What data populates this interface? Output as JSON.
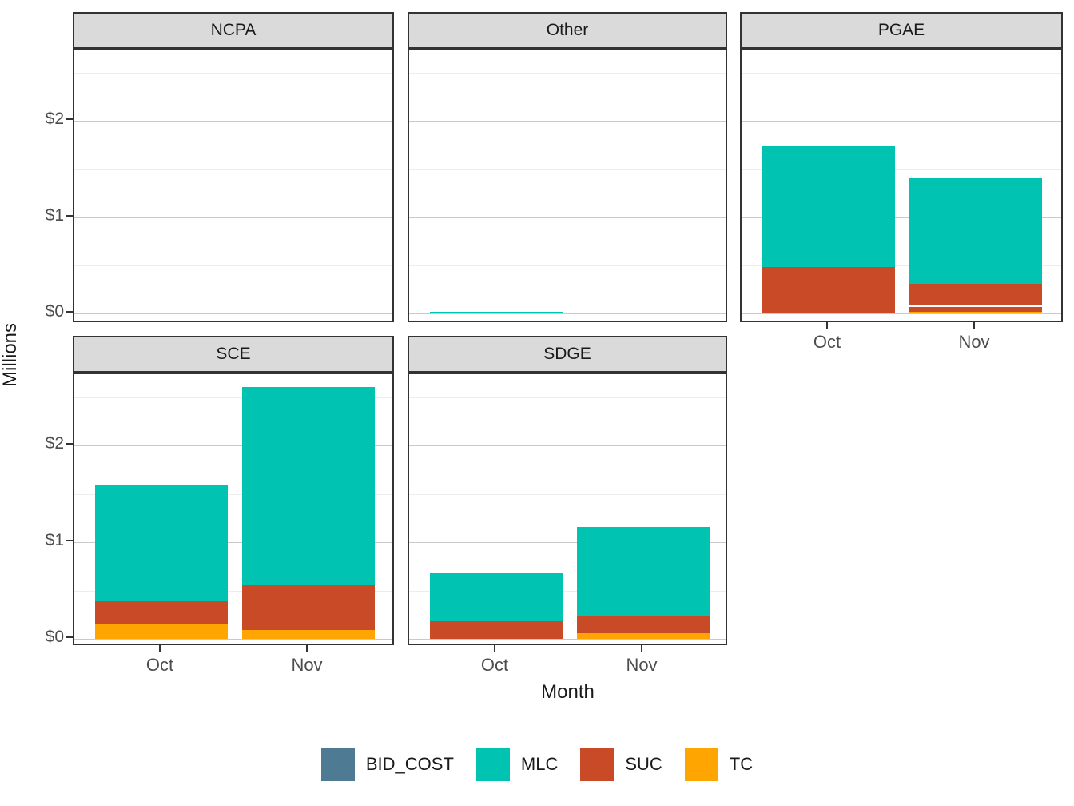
{
  "chart_data": {
    "type": "bar",
    "stacked": true,
    "xlabel": "Month",
    "ylabel": "Millions",
    "x_categories": [
      "Oct",
      "Nov"
    ],
    "y_ticks": [
      {
        "label": "$0",
        "value": 0
      },
      {
        "label": "$1",
        "value": 1
      },
      {
        "label": "$2",
        "value": 2
      }
    ],
    "y_minor_values": [
      0.5,
      1.5,
      2.5
    ],
    "ylim": [
      -0.09,
      2.74
    ],
    "grid": true,
    "legend_position": "bottom",
    "legend": [
      {
        "name": "BID_COST",
        "color": "#4F7A93"
      },
      {
        "name": "MLC",
        "color": "#00C3B2"
      },
      {
        "name": "SUC",
        "color": "#C84A26"
      },
      {
        "name": "TC",
        "color": "#FFA502"
      }
    ],
    "facets": [
      {
        "name": "NCPA",
        "bars": {
          "Oct": [],
          "Nov": []
        }
      },
      {
        "name": "Other",
        "bars": {
          "Oct": [
            {
              "key": "MLC",
              "value": 0.02
            }
          ],
          "Nov": []
        }
      },
      {
        "name": "PGAE",
        "bars": {
          "Oct": [
            {
              "key": "SUC",
              "value": 0.48
            },
            {
              "key": "MLC",
              "value": 1.26
            }
          ],
          "Nov": [
            {
              "key": "TC",
              "value": 0.02
            },
            {
              "key": "SUC",
              "value": 0.055
            },
            {
              "key": "SUC",
              "value": 0.235,
              "divider_below": true
            },
            {
              "key": "MLC",
              "value": 1.09
            }
          ]
        }
      },
      {
        "name": "SCE",
        "bars": {
          "Oct": [
            {
              "key": "TC",
              "value": 0.15
            },
            {
              "key": "SUC",
              "value": 0.25
            },
            {
              "key": "MLC",
              "value": 1.19
            }
          ],
          "Nov": [
            {
              "key": "TC",
              "value": 0.09
            },
            {
              "key": "SUC",
              "value": 0.46
            },
            {
              "key": "MLC",
              "value": 2.05
            }
          ]
        }
      },
      {
        "name": "SDGE",
        "bars": {
          "Oct": [
            {
              "key": "SUC",
              "value": 0.18
            },
            {
              "key": "MLC",
              "value": 0.5
            }
          ],
          "Nov": [
            {
              "key": "TC",
              "value": 0.055
            },
            {
              "key": "SUC",
              "value": 0.18
            },
            {
              "key": "MLC",
              "value": 0.92
            }
          ]
        }
      }
    ]
  }
}
